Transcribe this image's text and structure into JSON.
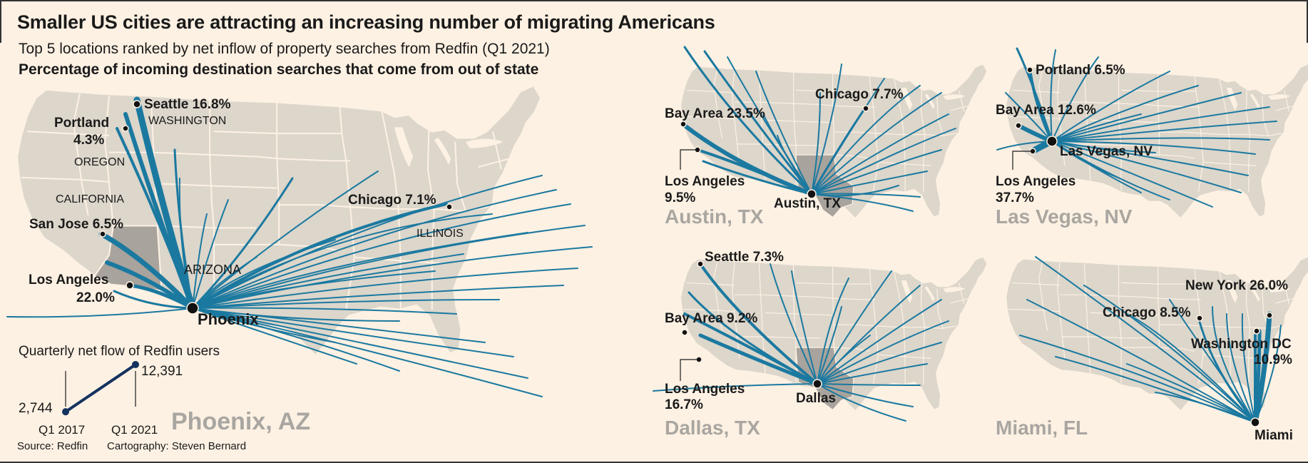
{
  "title": "Smaller US cities are attracting an increasing number of migrating Americans",
  "subtitle": "Top 5 locations ranked by net inflow of property searches from Redfin (Q1 2021)",
  "subtitle2": "Percentage of incoming destination searches that come from out of state",
  "colors": {
    "background": "#fdf1e3",
    "land": "#dcd6cb",
    "highlight": "#a8a39c",
    "flow": "#1b79a0",
    "inset_line": "#14325f",
    "destination_title": "#a9a6a1"
  },
  "maps": {
    "phoenix": {
      "name": "Phoenix, AZ",
      "dest": "Phoenix",
      "origins": [
        {
          "city": "Seattle",
          "pct": "16.8%"
        },
        {
          "city": "Portland",
          "pct": "4.3%"
        },
        {
          "city": "San Jose",
          "pct": "6.5%"
        },
        {
          "city": "Los Angeles",
          "pct": "22.0%"
        },
        {
          "city": "Chicago",
          "pct": "7.1%"
        }
      ],
      "state_labels": [
        "WASHINGTON",
        "OREGON",
        "CALIFORNIA",
        "ARIZONA",
        "ILLINOIS"
      ]
    },
    "austin": {
      "name": "Austin, TX",
      "dest": "Austin, TX",
      "origins": [
        {
          "city": "Bay Area",
          "pct": "23.5%"
        },
        {
          "city": "Chicago",
          "pct": "7.7%"
        },
        {
          "city": "Los Angeles",
          "pct": "9.5%"
        }
      ]
    },
    "lasvegas": {
      "name": "Las Vegas, NV",
      "dest": "Las Vegas, NV",
      "origins": [
        {
          "city": "Portland",
          "pct": "6.5%"
        },
        {
          "city": "Bay Area",
          "pct": "12.6%"
        },
        {
          "city": "Los Angeles",
          "pct": "37.7%"
        }
      ]
    },
    "dallas": {
      "name": "Dallas, TX",
      "dest": "Dallas",
      "origins": [
        {
          "city": "Seattle",
          "pct": "7.3%"
        },
        {
          "city": "Bay Area",
          "pct": "9.2%"
        },
        {
          "city": "Los Angeles",
          "pct": "16.7%"
        }
      ]
    },
    "miami": {
      "name": "Miami, FL",
      "dest": "Miami",
      "origins": [
        {
          "city": "New York",
          "pct": "26.0%"
        },
        {
          "city": "Chicago",
          "pct": "8.5%"
        },
        {
          "city": "Washington DC",
          "pct": "10.9%"
        }
      ]
    }
  },
  "inset": {
    "title": "Quarterly net flow of Redfin users",
    "points": [
      {
        "label": "Q1 2017",
        "value": 2744,
        "display": "2,744"
      },
      {
        "label": "Q1 2021",
        "value": 12391,
        "display": "12,391"
      }
    ]
  },
  "source": "Source: Redfin",
  "credit": "Cartography: Steven Bernard"
}
